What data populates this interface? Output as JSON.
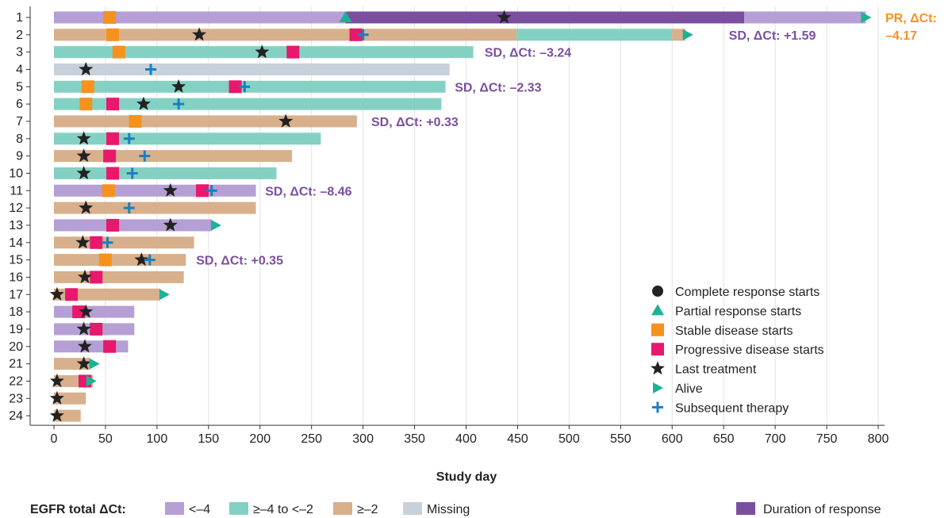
{
  "chart_data": {
    "type": "swimmer",
    "xlabel": "Study day",
    "ylabel": "",
    "xlim": [
      0,
      800
    ],
    "xticks": [
      0,
      50,
      100,
      150,
      200,
      250,
      300,
      350,
      400,
      450,
      500,
      550,
      600,
      650,
      700,
      750,
      800
    ],
    "grid": "vertical",
    "colors": {
      "lt_neg4": "#b59fd4",
      "neg4_to_neg2": "#84d1c3",
      "ge_neg2": "#d8b08c",
      "missing": "#c8d0da",
      "duration": "#7a4fa0",
      "complete": "#222222",
      "partial": "#1ab394",
      "stable": "#f5921e",
      "progressive": "#e8186d",
      "last_treatment": "#222222",
      "alive": "#1ab394",
      "subsequent": "#1a7fc1",
      "ann_purple": "#7a4fa0",
      "ann_orange": "#f5921e"
    },
    "patients": [
      {
        "id": "1",
        "segments": [
          {
            "from": 0,
            "to": 283,
            "cat": "lt_neg4"
          },
          {
            "from": 283,
            "to": 670,
            "cat": "duration"
          },
          {
            "from": 670,
            "to": 788,
            "cat": "lt_neg4"
          }
        ],
        "stable": [
          54
        ],
        "progressive": [],
        "partial": [
          283
        ],
        "last_treatment": [
          437
        ],
        "alive": [
          788
        ],
        "subsequent": []
      },
      {
        "id": "2",
        "segments": [
          {
            "from": 0,
            "to": 449,
            "cat": "ge_neg2"
          },
          {
            "from": 449,
            "to": 600,
            "cat": "neg4_to_neg2"
          },
          {
            "from": 600,
            "to": 613,
            "cat": "ge_neg2"
          }
        ],
        "stable": [
          57
        ],
        "progressive": [
          293
        ],
        "partial": [],
        "last_treatment": [
          141
        ],
        "alive": [
          615
        ],
        "subsequent": [
          300
        ]
      },
      {
        "id": "3",
        "segments": [
          {
            "from": 0,
            "to": 407,
            "cat": "neg4_to_neg2"
          }
        ],
        "stable": [
          63
        ],
        "progressive": [
          232
        ],
        "partial": [],
        "last_treatment": [
          202
        ],
        "alive": [],
        "subsequent": []
      },
      {
        "id": "4",
        "segments": [
          {
            "from": 0,
            "to": 384,
            "cat": "missing"
          }
        ],
        "stable": [],
        "progressive": [],
        "partial": [],
        "last_treatment": [
          31
        ],
        "alive": [],
        "subsequent": [
          94
        ]
      },
      {
        "id": "5",
        "segments": [
          {
            "from": 0,
            "to": 380,
            "cat": "neg4_to_neg2"
          }
        ],
        "stable": [
          33
        ],
        "progressive": [
          176
        ],
        "partial": [],
        "last_treatment": [
          121
        ],
        "alive": [],
        "subsequent": [
          185
        ]
      },
      {
        "id": "6",
        "segments": [
          {
            "from": 0,
            "to": 376,
            "cat": "neg4_to_neg2"
          }
        ],
        "stable": [
          31
        ],
        "progressive": [
          57
        ],
        "partial": [],
        "last_treatment": [
          87
        ],
        "alive": [],
        "subsequent": [
          121
        ]
      },
      {
        "id": "7",
        "segments": [
          {
            "from": 0,
            "to": 294,
            "cat": "ge_neg2"
          }
        ],
        "stable": [
          79
        ],
        "progressive": [],
        "partial": [],
        "last_treatment": [
          225
        ],
        "alive": [],
        "subsequent": []
      },
      {
        "id": "8",
        "segments": [
          {
            "from": 0,
            "to": 259,
            "cat": "neg4_to_neg2"
          }
        ],
        "stable": [],
        "progressive": [
          57
        ],
        "partial": [],
        "last_treatment": [
          29
        ],
        "alive": [],
        "subsequent": [
          73
        ]
      },
      {
        "id": "9",
        "segments": [
          {
            "from": 0,
            "to": 231,
            "cat": "ge_neg2"
          }
        ],
        "stable": [],
        "progressive": [
          54
        ],
        "partial": [],
        "last_treatment": [
          29
        ],
        "alive": [],
        "subsequent": [
          88
        ]
      },
      {
        "id": "10",
        "segments": [
          {
            "from": 0,
            "to": 216,
            "cat": "neg4_to_neg2"
          }
        ],
        "stable": [],
        "progressive": [
          57
        ],
        "partial": [],
        "last_treatment": [
          29
        ],
        "alive": [],
        "subsequent": [
          76
        ]
      },
      {
        "id": "11",
        "segments": [
          {
            "from": 0,
            "to": 196,
            "cat": "lt_neg4"
          }
        ],
        "stable": [
          53
        ],
        "progressive": [
          144
        ],
        "partial": [],
        "last_treatment": [
          113
        ],
        "alive": [],
        "subsequent": [
          153
        ]
      },
      {
        "id": "12",
        "segments": [
          {
            "from": 0,
            "to": 196,
            "cat": "ge_neg2"
          }
        ],
        "stable": [],
        "progressive": [],
        "partial": [],
        "last_treatment": [
          31
        ],
        "alive": [],
        "subsequent": [
          73
        ]
      },
      {
        "id": "13",
        "segments": [
          {
            "from": 0,
            "to": 153,
            "cat": "lt_neg4"
          }
        ],
        "stable": [],
        "progressive": [
          57
        ],
        "partial": [],
        "last_treatment": [
          113
        ],
        "alive": [
          157
        ],
        "subsequent": []
      },
      {
        "id": "14",
        "segments": [
          {
            "from": 0,
            "to": 136,
            "cat": "ge_neg2"
          }
        ],
        "stable": [],
        "progressive": [
          41
        ],
        "partial": [],
        "last_treatment": [
          28
        ],
        "alive": [],
        "subsequent": [
          52
        ]
      },
      {
        "id": "15",
        "segments": [
          {
            "from": 0,
            "to": 128,
            "cat": "ge_neg2"
          }
        ],
        "stable": [
          50
        ],
        "progressive": [],
        "partial": [],
        "last_treatment": [
          85
        ],
        "alive": [],
        "subsequent": [
          93
        ]
      },
      {
        "id": "16",
        "segments": [
          {
            "from": 0,
            "to": 126,
            "cat": "ge_neg2"
          }
        ],
        "stable": [],
        "progressive": [
          41
        ],
        "partial": [],
        "last_treatment": [
          30
        ],
        "alive": [],
        "subsequent": []
      },
      {
        "id": "17",
        "segments": [
          {
            "from": 0,
            "to": 103,
            "cat": "ge_neg2"
          }
        ],
        "stable": [],
        "progressive": [
          17
        ],
        "partial": [],
        "last_treatment": [
          3
        ],
        "alive": [
          107
        ],
        "subsequent": []
      },
      {
        "id": "18",
        "segments": [
          {
            "from": 0,
            "to": 78,
            "cat": "lt_neg4"
          }
        ],
        "stable": [],
        "progressive": [
          24
        ],
        "partial": [],
        "last_treatment": [
          31
        ],
        "alive": [],
        "subsequent": []
      },
      {
        "id": "19",
        "segments": [
          {
            "from": 0,
            "to": 78,
            "cat": "lt_neg4"
          }
        ],
        "stable": [],
        "progressive": [
          41
        ],
        "partial": [],
        "last_treatment": [
          29
        ],
        "alive": [],
        "subsequent": []
      },
      {
        "id": "20",
        "segments": [
          {
            "from": 0,
            "to": 72,
            "cat": "lt_neg4"
          }
        ],
        "stable": [],
        "progressive": [
          54
        ],
        "partial": [],
        "last_treatment": [
          30
        ],
        "alive": [],
        "subsequent": []
      },
      {
        "id": "21",
        "segments": [
          {
            "from": 0,
            "to": 35,
            "cat": "ge_neg2"
          }
        ],
        "stable": [],
        "progressive": [],
        "partial": [],
        "last_treatment": [
          29
        ],
        "alive": [
          39
        ],
        "subsequent": []
      },
      {
        "id": "22",
        "segments": [
          {
            "from": 0,
            "to": 38,
            "cat": "ge_neg2"
          }
        ],
        "stable": [],
        "progressive": [
          30
        ],
        "partial": [],
        "last_treatment": [
          3
        ],
        "alive": [
          36
        ],
        "subsequent": []
      },
      {
        "id": "23",
        "segments": [
          {
            "from": 0,
            "to": 31,
            "cat": "ge_neg2"
          }
        ],
        "stable": [],
        "progressive": [],
        "partial": [],
        "last_treatment": [
          3
        ],
        "alive": [],
        "subsequent": []
      },
      {
        "id": "24",
        "segments": [
          {
            "from": 0,
            "to": 26,
            "cat": "ge_neg2"
          }
        ],
        "stable": [],
        "progressive": [],
        "partial": [],
        "last_treatment": [
          3
        ],
        "alive": [],
        "subsequent": []
      }
    ],
    "annotations": [
      {
        "row": 2,
        "x": 655,
        "text": "SD, ΔCt: +1.59",
        "color": "ann_purple"
      },
      {
        "row": 3,
        "x": 418,
        "text": "SD, ΔCt: –3.24",
        "color": "ann_purple"
      },
      {
        "row": 5,
        "x": 389,
        "text": "SD, ΔCt: –2.33",
        "color": "ann_purple"
      },
      {
        "row": 7,
        "x": 308,
        "text": "SD, ΔCt: +0.33",
        "color": "ann_purple"
      },
      {
        "row": 11,
        "x": 205,
        "text": "SD, ΔCt: –8.46",
        "color": "ann_purple"
      },
      {
        "row": 15,
        "x": 138,
        "text": "SD, ΔCt: +0.35",
        "color": "ann_purple"
      }
    ],
    "pr_annotation": {
      "row": 1,
      "line1": "PR, ΔCt:",
      "line2": "–4.17",
      "color": "ann_orange"
    },
    "legend": {
      "placement": "lower-right",
      "items": [
        {
          "marker": "circle",
          "label": "Complete response starts",
          "color": "complete"
        },
        {
          "marker": "triangle",
          "label": "Partial response starts",
          "color": "partial"
        },
        {
          "marker": "square",
          "label": "Stable disease starts",
          "color": "stable"
        },
        {
          "marker": "square",
          "label": "Progressive disease starts",
          "color": "progressive"
        },
        {
          "marker": "star",
          "label": "Last treatment",
          "color": "last_treatment"
        },
        {
          "marker": "arrow",
          "label": "Alive",
          "color": "alive"
        },
        {
          "marker": "plus",
          "label": "Subsequent therapy",
          "color": "subsequent"
        }
      ]
    },
    "bottom_legend": {
      "title": "EGFR total ΔCt:",
      "items": [
        {
          "label": "<–4",
          "cat": "lt_neg4"
        },
        {
          "label": "≥–4 to <–2",
          "cat": "neg4_to_neg2"
        },
        {
          "label": "≥–2",
          "cat": "ge_neg2"
        },
        {
          "label": "Missing",
          "cat": "missing"
        }
      ],
      "duration_label": "Duration of response"
    }
  }
}
